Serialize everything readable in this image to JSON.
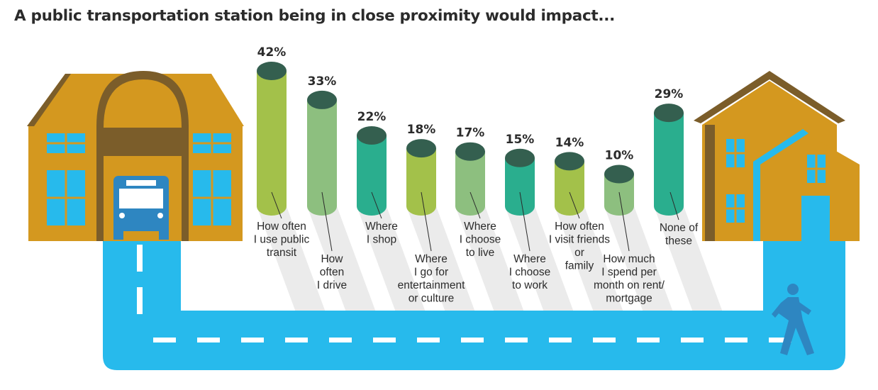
{
  "chart_data": {
    "type": "bar",
    "title": "A public transportation station being in close proximity would impact...",
    "categories": [
      "How often I use public transit",
      "How often I drive",
      "Where I shop",
      "Where I go for entertainment or culture",
      "Where I choose to live",
      "Where I choose to work",
      "How often I visit friends or family",
      "How much I spend per month on rent/ mortgage",
      "None of these"
    ],
    "values": [
      42,
      33,
      22,
      18,
      17,
      15,
      14,
      10,
      29
    ],
    "value_labels": [
      "42%",
      "33%",
      "22%",
      "18%",
      "17%",
      "15%",
      "14%",
      "10%",
      "29%"
    ],
    "label_lines": [
      [
        "How often",
        "I use public",
        "transit"
      ],
      [
        "How",
        "often",
        "I drive"
      ],
      [
        "Where",
        "I shop"
      ],
      [
        "Where",
        "I go for",
        "entertainment",
        "or culture"
      ],
      [
        "Where",
        "I choose",
        "to live"
      ],
      [
        "Where",
        "I choose",
        "to work"
      ],
      [
        "How often",
        "I visit friends",
        "or",
        "family"
      ],
      [
        "How much",
        "I spend per",
        "month on rent/",
        "mortgage"
      ],
      [
        "None of",
        "these"
      ]
    ],
    "bar_colors": [
      "#a3c14a",
      "#8dbf7f",
      "#2aae8e",
      "#a3c14a",
      "#8dbf7f",
      "#2aae8e",
      "#a3c14a",
      "#8dbf7f",
      "#2aae8e"
    ],
    "cap_color": "#345f4f",
    "ylim": [
      0,
      42
    ],
    "grid": false,
    "xlabel": "",
    "ylabel": ""
  },
  "colors": {
    "road": "#27baec",
    "road_dash": "#ffffff",
    "building": "#d4981f",
    "roof_dark": "#7b5d2a",
    "window": "#27baec",
    "bus": "#2e86c1",
    "pedestrian": "#2e86c1",
    "shadow_stripe": "#ebebeb"
  },
  "icons": [
    "station-building-icon",
    "bus-icon",
    "house-icon",
    "pedestrian-icon"
  ]
}
